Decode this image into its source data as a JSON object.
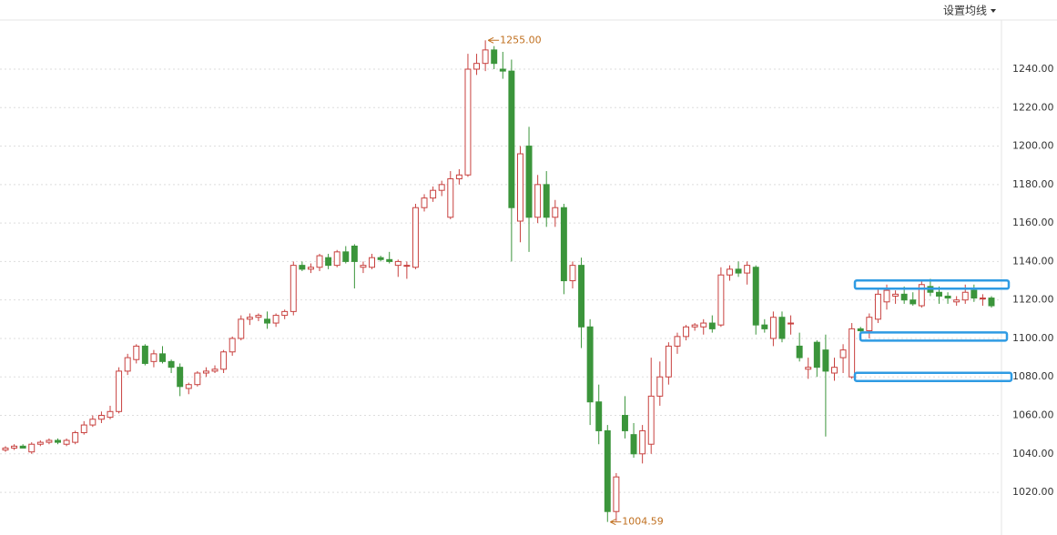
{
  "chart_data": {
    "type": "candlestick",
    "menu_label": "设置均线",
    "ylim": [
      997.8,
      1266.5
    ],
    "yticks": [
      {
        "value": 1020,
        "label": "1020.00"
      },
      {
        "value": 1040,
        "label": "1040.00"
      },
      {
        "value": 1060,
        "label": "1060.00"
      },
      {
        "value": 1080,
        "label": "1080.00"
      },
      {
        "value": 1100,
        "label": "1100.00"
      },
      {
        "value": 1120,
        "label": "1120.00"
      },
      {
        "value": 1140,
        "label": "1140.00"
      },
      {
        "value": 1160,
        "label": "1160.00"
      },
      {
        "value": 1180,
        "label": "1180.00"
      },
      {
        "value": 1200,
        "label": "1200.00"
      },
      {
        "value": 1220,
        "label": "1220.00"
      },
      {
        "value": 1240,
        "label": "1240.00"
      }
    ],
    "grid": true,
    "up_color": "#c8413f",
    "down_color": "#3b953b",
    "highlight_color": "#2f9be3",
    "highlight_levels": [
      1128,
      1101,
      1080
    ],
    "max_label": {
      "value": 1255,
      "label": "1255.00"
    },
    "min_label": {
      "value": 1004.59,
      "label": "1004.59"
    },
    "open": [
      1042,
      1043,
      1044,
      1041,
      1045,
      1046,
      1047,
      1045,
      1046,
      1051,
      1055,
      1058,
      1059,
      1062,
      1083,
      1089,
      1096,
      1088,
      1092,
      1088,
      1085,
      1074,
      1076,
      1082,
      1083,
      1084,
      1093,
      1100,
      1110,
      1111,
      1110,
      1108,
      1112,
      1114,
      1138,
      1136,
      1137,
      1142,
      1138,
      1145,
      1148,
      1137,
      1137,
      1142,
      1141,
      1138,
      1138,
      1137,
      1168,
      1173,
      1177,
      1163,
      1183,
      1185,
      1240,
      1243,
      1250,
      1240,
      1239,
      1161,
      1200,
      1163,
      1180,
      1163,
      1168,
      1130,
      1138,
      1106,
      1067,
      1052,
      1010,
      1060,
      1050,
      1040,
      1045,
      1070,
      1080,
      1096,
      1101,
      1106,
      1106,
      1108,
      1107,
      1133,
      1136,
      1134,
      1137,
      1107,
      1100,
      1111,
      1108,
      1096,
      1084,
      1098,
      1094,
      1082,
      1090,
      1080,
      1105,
      1104,
      1110,
      1119,
      1122,
      1123,
      1120,
      1117,
      1127,
      1124,
      1122,
      1119,
      1120,
      1125,
      1121,
      1121
    ],
    "high": [
      1044,
      1045,
      1045,
      1046,
      1047,
      1048,
      1048,
      1048,
      1052,
      1057,
      1060,
      1062,
      1065,
      1085,
      1092,
      1097,
      1097,
      1094,
      1096,
      1089,
      1087,
      1077,
      1083,
      1085,
      1086,
      1094,
      1101,
      1112,
      1113,
      1113,
      1114,
      1113,
      1115,
      1140,
      1140,
      1139,
      1144,
      1144,
      1146,
      1148,
      1149,
      1140,
      1144,
      1143,
      1145,
      1141,
      1140,
      1170,
      1175,
      1179,
      1182,
      1187,
      1188,
      1248,
      1248,
      1255,
      1252,
      1249,
      1245,
      1200,
      1210,
      1185,
      1187,
      1172,
      1170,
      1140,
      1142,
      1110,
      1076,
      1055,
      1030,
      1070,
      1056,
      1055,
      1090,
      1088,
      1098,
      1103,
      1107,
      1108,
      1110,
      1112,
      1137,
      1138,
      1140,
      1140,
      1138,
      1110,
      1114,
      1114,
      1112,
      1103,
      1090,
      1099,
      1102,
      1090,
      1097,
      1108,
      1106,
      1113,
      1126,
      1128,
      1125,
      1127,
      1124,
      1130,
      1131,
      1127,
      1124,
      1122,
      1128,
      1128,
      1123,
      1122
    ],
    "low": [
      1041,
      1042,
      1043,
      1040,
      1044,
      1045,
      1045,
      1044,
      1045,
      1050,
      1054,
      1056,
      1058,
      1061,
      1081,
      1087,
      1086,
      1085,
      1087,
      1082,
      1070,
      1071,
      1075,
      1080,
      1082,
      1082,
      1091,
      1099,
      1107,
      1109,
      1105,
      1106,
      1110,
      1112,
      1135,
      1134,
      1135,
      1136,
      1137,
      1139,
      1126,
      1134,
      1136,
      1140,
      1139,
      1132,
      1131,
      1136,
      1166,
      1171,
      1174,
      1162,
      1180,
      1184,
      1237,
      1239,
      1240,
      1235,
      1140,
      1150,
      1145,
      1160,
      1158,
      1158,
      1123,
      1126,
      1095,
      1055,
      1045,
      1004.59,
      1005,
      1048,
      1038,
      1035,
      1040,
      1065,
      1076,
      1092,
      1099,
      1104,
      1102,
      1103,
      1106,
      1130,
      1132,
      1128,
      1102,
      1103,
      1096,
      1098,
      1102,
      1088,
      1079,
      1080,
      1049,
      1078,
      1082,
      1079,
      1103,
      1100,
      1108,
      1115,
      1118,
      1118,
      1117,
      1116,
      1122,
      1118,
      1118,
      1117,
      1118,
      1119,
      1117,
      1116
    ],
    "close": [
      1043,
      1044,
      1043,
      1045,
      1046,
      1047,
      1046,
      1047,
      1051,
      1055,
      1058,
      1060,
      1062,
      1083,
      1090,
      1096,
      1087,
      1092,
      1088,
      1085,
      1075,
      1076,
      1082,
      1083,
      1084,
      1093,
      1100,
      1110,
      1111,
      1112,
      1108,
      1112,
      1114,
      1138,
      1136,
      1137,
      1143,
      1138,
      1145,
      1140,
      1140,
      1138,
      1142,
      1141,
      1140,
      1140,
      1138,
      1168,
      1173,
      1177,
      1180,
      1183,
      1185,
      1240,
      1243,
      1250,
      1243,
      1239,
      1168,
      1196,
      1163,
      1180,
      1163,
      1168,
      1130,
      1138,
      1106,
      1067,
      1052,
      1010,
      1028,
      1052,
      1040,
      1052,
      1070,
      1080,
      1096,
      1101,
      1106,
      1107,
      1108,
      1105,
      1133,
      1136,
      1134,
      1138,
      1107,
      1105,
      1111,
      1100,
      1108,
      1090,
      1085,
      1085,
      1083,
      1085,
      1094,
      1105,
      1104,
      1111,
      1123,
      1125,
      1123,
      1120,
      1118,
      1128,
      1124,
      1122,
      1121,
      1120,
      1124,
      1121,
      1121,
      1117
    ]
  }
}
